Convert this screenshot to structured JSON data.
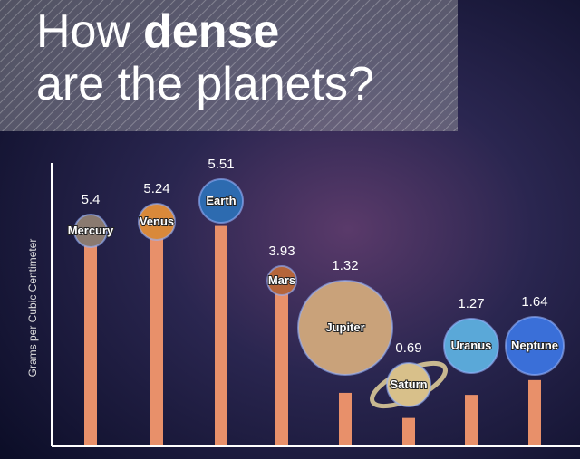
{
  "chart_data": {
    "type": "bar",
    "title": [
      {
        "text": "How"
      },
      {
        "text": "dense",
        "bold": true
      },
      {
        "text": "are the planets?",
        "break": true
      }
    ],
    "y_label": "Grams per Cubic Centimeter",
    "categories": [
      "Mercury",
      "Venus",
      "Earth",
      "Mars",
      "Jupiter",
      "Saturn",
      "Uranus",
      "Neptune"
    ],
    "values": [
      5.4,
      5.24,
      5.51,
      3.93,
      1.32,
      0.69,
      1.27,
      1.64
    ],
    "color": "#e8906a",
    "ylim": [
      0,
      6
    ]
  }
}
